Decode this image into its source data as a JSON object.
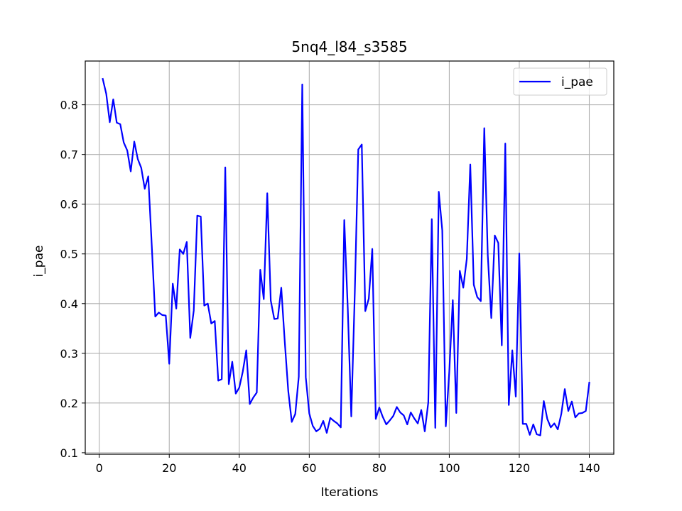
{
  "chart_data": {
    "type": "line",
    "title": "5nq4_l84_s3585",
    "xlabel": "Iterations",
    "ylabel": "i_pae",
    "xlim": [
      -4,
      147
    ],
    "ylim": [
      0.097,
      0.888
    ],
    "xticks": [
      0,
      20,
      40,
      60,
      80,
      100,
      120,
      140
    ],
    "yticks": [
      0.1,
      0.2,
      0.3,
      0.4,
      0.5,
      0.6,
      0.7,
      0.8
    ],
    "grid": true,
    "legend_position": "top-right",
    "series": [
      {
        "name": "i_pae",
        "color": "#0000ff",
        "x": [
          1,
          2,
          3,
          4,
          5,
          6,
          7,
          8,
          9,
          10,
          11,
          12,
          13,
          14,
          15,
          16,
          17,
          18,
          19,
          20,
          21,
          22,
          23,
          24,
          25,
          26,
          27,
          28,
          29,
          30,
          31,
          32,
          33,
          34,
          35,
          36,
          37,
          38,
          39,
          40,
          41,
          42,
          43,
          44,
          45,
          46,
          47,
          48,
          49,
          50,
          51,
          52,
          53,
          54,
          55,
          56,
          57,
          58,
          59,
          60,
          61,
          62,
          63,
          64,
          65,
          66,
          67,
          68,
          69,
          70,
          71,
          72,
          73,
          74,
          75,
          76,
          77,
          78,
          79,
          80,
          81,
          82,
          83,
          84,
          85,
          86,
          87,
          88,
          89,
          90,
          91,
          92,
          93,
          94,
          95,
          96,
          97,
          98,
          99,
          100,
          101,
          102,
          103,
          104,
          105,
          106,
          107,
          108,
          109,
          110,
          111,
          112,
          113,
          114,
          115,
          116,
          117,
          118,
          119,
          120,
          121,
          122,
          123,
          124,
          125,
          126,
          127,
          128,
          129,
          130,
          131,
          132,
          133,
          134,
          135,
          136,
          137,
          138,
          139,
          140
        ],
        "y": [
          0.852,
          0.822,
          0.765,
          0.811,
          0.764,
          0.761,
          0.724,
          0.708,
          0.666,
          0.726,
          0.691,
          0.673,
          0.631,
          0.656,
          0.517,
          0.374,
          0.382,
          0.377,
          0.376,
          0.279,
          0.44,
          0.39,
          0.509,
          0.5,
          0.524,
          0.331,
          0.386,
          0.577,
          0.575,
          0.396,
          0.4,
          0.36,
          0.365,
          0.245,
          0.248,
          0.674,
          0.238,
          0.283,
          0.219,
          0.231,
          0.263,
          0.306,
          0.198,
          0.211,
          0.221,
          0.468,
          0.409,
          0.622,
          0.406,
          0.369,
          0.37,
          0.432,
          0.323,
          0.224,
          0.162,
          0.178,
          0.253,
          0.841,
          0.252,
          0.179,
          0.154,
          0.143,
          0.148,
          0.164,
          0.14,
          0.17,
          0.164,
          0.159,
          0.151,
          0.568,
          0.39,
          0.173,
          0.42,
          0.71,
          0.72,
          0.385,
          0.41,
          0.51,
          0.168,
          0.191,
          0.172,
          0.157,
          0.165,
          0.174,
          0.192,
          0.181,
          0.175,
          0.157,
          0.181,
          0.169,
          0.159,
          0.186,
          0.143,
          0.201,
          0.57,
          0.15,
          0.625,
          0.547,
          0.153,
          0.263,
          0.407,
          0.18,
          0.466,
          0.432,
          0.49,
          0.68,
          0.438,
          0.413,
          0.405,
          0.753,
          0.497,
          0.371,
          0.537,
          0.522,
          0.316,
          0.722,
          0.196,
          0.306,
          0.213,
          0.501,
          0.158,
          0.158,
          0.136,
          0.157,
          0.137,
          0.135,
          0.204,
          0.168,
          0.151,
          0.159,
          0.147,
          0.178,
          0.228,
          0.184,
          0.203,
          0.171,
          0.179,
          0.18,
          0.184,
          0.241
        ]
      }
    ]
  }
}
